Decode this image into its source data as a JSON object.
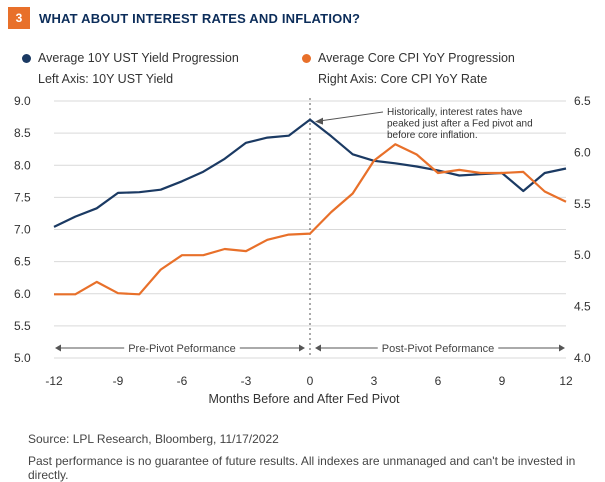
{
  "header": {
    "number": "3",
    "title": "WHAT ABOUT INTEREST RATES AND INFLATION?"
  },
  "colors": {
    "navy": "#1b3a63",
    "orange": "#e8702a",
    "badge": "#e8702a"
  },
  "legend": {
    "left": {
      "label": "Average 10Y UST Yield Progression",
      "axis_note": "Left Axis: 10Y UST Yield"
    },
    "right": {
      "label": "Average Core CPI YoY Progression",
      "axis_note": "Right Axis: Core CPI YoY Rate"
    }
  },
  "chart_data": {
    "type": "line",
    "xlabel": "Months Before and After Fed Pivot",
    "x": [
      -12,
      -11,
      -10,
      -9,
      -8,
      -7,
      -6,
      -5,
      -4,
      -3,
      -2,
      -1,
      0,
      1,
      2,
      3,
      4,
      5,
      6,
      7,
      8,
      9,
      10,
      11,
      12
    ],
    "x_ticks": [
      "-12",
      "-9",
      "-6",
      "-3",
      "0",
      "3",
      "6",
      "9",
      "12"
    ],
    "y_left": {
      "label": "10Y UST Yield",
      "lim": [
        5.0,
        9.0
      ],
      "ticks": [
        "5.0",
        "5.5",
        "6.0",
        "6.5",
        "7.0",
        "7.5",
        "8.0",
        "8.5",
        "9.0"
      ]
    },
    "y_right": {
      "label": "Core CPI YoY Rate",
      "lim": [
        4.0,
        6.5
      ],
      "ticks": [
        "4.0",
        "4.5",
        "5.0",
        "5.5",
        "6.0",
        "6.5"
      ]
    },
    "series": [
      {
        "name": "Average 10Y UST Yield Progression",
        "axis": "left",
        "values": [
          7.04,
          7.2,
          7.33,
          7.57,
          7.58,
          7.62,
          7.75,
          7.9,
          8.1,
          8.35,
          8.43,
          8.46,
          8.71,
          8.45,
          8.17,
          8.07,
          8.03,
          7.98,
          7.92,
          7.84,
          7.86,
          7.88,
          7.6,
          7.88,
          7.95
        ]
      },
      {
        "name": "Average Core CPI YoY Progression",
        "axis": "right",
        "values": [
          4.62,
          4.62,
          4.74,
          4.63,
          4.62,
          4.86,
          5.0,
          5.0,
          5.06,
          5.04,
          5.15,
          5.2,
          5.21,
          5.42,
          5.6,
          5.92,
          6.08,
          5.98,
          5.8,
          5.83,
          5.8,
          5.8,
          5.81,
          5.62,
          5.52
        ]
      }
    ],
    "annotation": "Historically, interest rates have peaked just after a Fed pivot and before core inflation.",
    "regions": {
      "pre": "Pre-Pivot Peformance",
      "post": "Post-Pivot Peformance"
    }
  },
  "footer": {
    "source": "Source: LPL Research, Bloomberg,  11/17/2022",
    "disclaimer": "Past performance is no guarantee of future results. All indexes are unmanaged and can't be invested in directly."
  }
}
